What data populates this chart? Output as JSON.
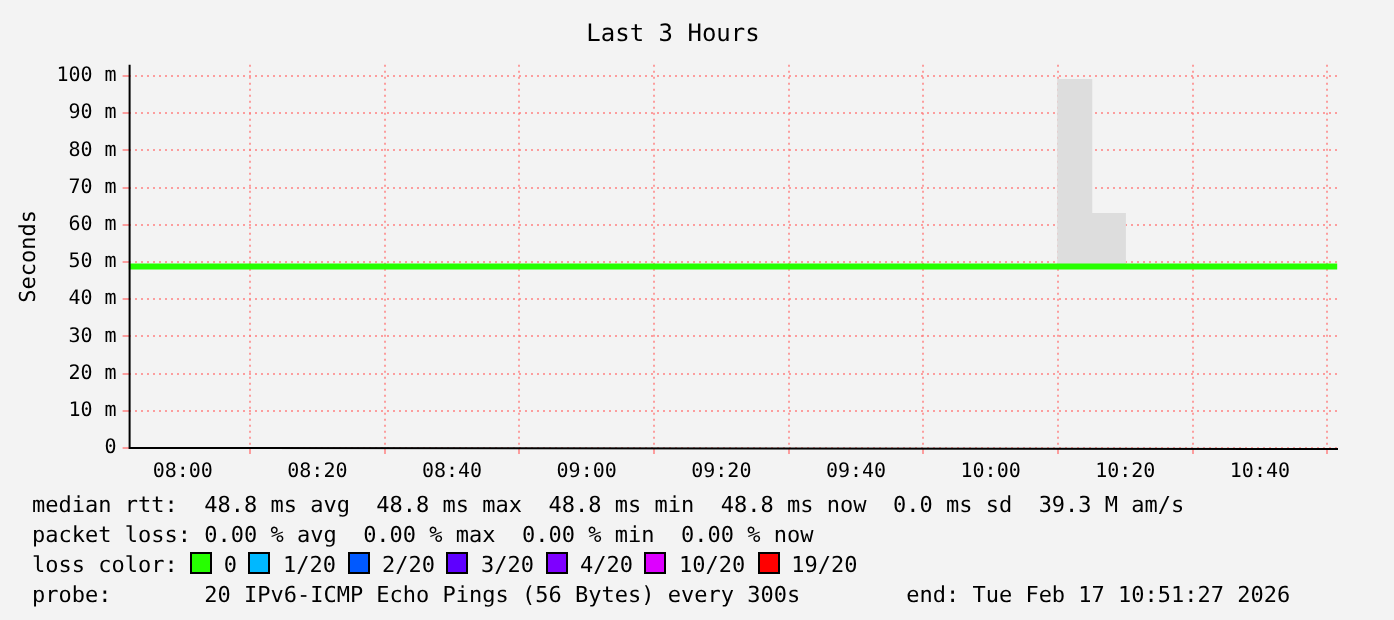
{
  "chart_data": {
    "type": "line",
    "title": "Last 3 Hours",
    "ylabel": "Seconds",
    "xlim": [
      7.866,
      10.86
    ],
    "xticks": [
      {
        "value": 8,
        "label": "08:00"
      },
      {
        "value": 8.3333,
        "label": "08:20"
      },
      {
        "value": 8.6667,
        "label": "08:40"
      },
      {
        "value": 9,
        "label": "09:00"
      },
      {
        "value": 9.3333,
        "label": "09:20"
      },
      {
        "value": 9.6667,
        "label": "09:40"
      },
      {
        "value": 10,
        "label": "10:00"
      },
      {
        "value": 10.3333,
        "label": "10:20"
      },
      {
        "value": 10.6667,
        "label": "10:40"
      }
    ],
    "ylim": [
      0,
      103
    ],
    "yticks": [
      0,
      {
        "value": 10,
        "label": "10 m"
      },
      {
        "value": 20,
        "label": "20 m"
      },
      {
        "value": 30,
        "label": "30 m"
      },
      {
        "value": 40,
        "label": "40 m"
      },
      {
        "value": 50,
        "label": "50 m"
      },
      {
        "value": 60,
        "label": "60 m"
      },
      {
        "value": 70,
        "label": "70 m"
      },
      {
        "value": 80,
        "label": "80 m"
      },
      {
        "value": 90,
        "label": "90 m"
      },
      {
        "value": 100,
        "label": "100 m"
      }
    ],
    "grid": true,
    "legend": "bottom",
    "legend_title": "loss color:",
    "marker": "none",
    "line_style": "solid",
    "series": [
      {
        "type": "bar",
        "color": "#dddddd",
        "x": [
          10.2083,
          10.2917
        ],
        "base": [
          48.8,
          48.8
        ],
        "values": [
          50.2,
          14.2
        ]
      },
      {
        "name": "0",
        "color": "#26ff00",
        "x": [
          7.866,
          10.858
        ],
        "values": [
          48.8,
          48.8
        ]
      },
      {
        "name": "1/20",
        "color": "#00b8ff"
      },
      {
        "name": "2/20",
        "color": "#0059ff"
      },
      {
        "name": "3/20",
        "color": "#5e00ff"
      },
      {
        "name": "4/20",
        "color": "#7e00ff"
      },
      {
        "name": "10/20",
        "color": "#dd00ff"
      },
      {
        "name": "19/20",
        "color": "#ff0000"
      }
    ],
    "annotations": [
      "median rtt:  48.8 ms avg  48.8 ms max  48.8 ms min  48.8 ms now  0.0 ms sd  39.3 M am/s",
      "packet loss: 0.00 % avg  0.00 % max  0.00 % min  0.00 % now",
      "probe:       20 IPv6-ICMP Echo Pings (56 Bytes) every 300s        end: Tue Feb 17 10:51:27 2026"
    ]
  }
}
